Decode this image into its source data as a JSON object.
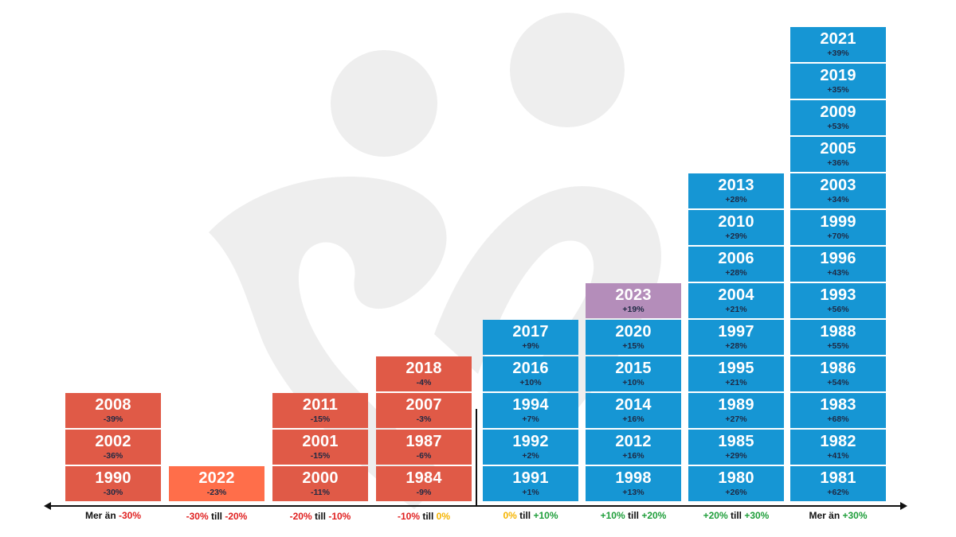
{
  "colors": {
    "negative": "#E05A47",
    "negative_light": "#FF6E4A",
    "positive": "#1696D4",
    "highlight": "#B48DBA",
    "watermark": "#EEEEEE",
    "label_red": "#E02020",
    "label_orange": "#F5B400",
    "label_green": "#1E9E3A"
  },
  "chart_data": {
    "type": "bar",
    "categories": [
      {
        "parts": [
          {
            "t": "Mer än ",
            "c": "black"
          },
          {
            "t": "-30%",
            "c": "red"
          }
        ]
      },
      {
        "parts": [
          {
            "t": "-30%",
            "c": "red"
          },
          {
            "t": " till ",
            "c": "black"
          },
          {
            "t": "-20%",
            "c": "red"
          }
        ]
      },
      {
        "parts": [
          {
            "t": "-20%",
            "c": "red"
          },
          {
            "t": " till ",
            "c": "black"
          },
          {
            "t": "-10%",
            "c": "red"
          }
        ]
      },
      {
        "parts": [
          {
            "t": "-10%",
            "c": "red"
          },
          {
            "t": " till ",
            "c": "black"
          },
          {
            "t": "0%",
            "c": "orange"
          }
        ]
      },
      {
        "parts": [
          {
            "t": "0%",
            "c": "orange"
          },
          {
            "t": " till ",
            "c": "black"
          },
          {
            "t": "+10%",
            "c": "green"
          }
        ]
      },
      {
        "parts": [
          {
            "t": "+10%",
            "c": "green"
          },
          {
            "t": " till ",
            "c": "black"
          },
          {
            "t": "+20%",
            "c": "green"
          }
        ]
      },
      {
        "parts": [
          {
            "t": "+20%",
            "c": "green"
          },
          {
            "t": " till ",
            "c": "black"
          },
          {
            "t": "+30%",
            "c": "green"
          }
        ]
      },
      {
        "parts": [
          {
            "t": "Mer än ",
            "c": "black"
          },
          {
            "t": "+30%",
            "c": "green"
          }
        ]
      }
    ],
    "columns": [
      {
        "color": "negative",
        "items": [
          {
            "year": "1990",
            "change": "-30%"
          },
          {
            "year": "2002",
            "change": "-36%"
          },
          {
            "year": "2008",
            "change": "-39%"
          }
        ]
      },
      {
        "color": "negative_light",
        "items": [
          {
            "year": "2022",
            "change": "-23%"
          }
        ]
      },
      {
        "color": "negative",
        "items": [
          {
            "year": "2000",
            "change": "-11%"
          },
          {
            "year": "2001",
            "change": "-15%"
          },
          {
            "year": "2011",
            "change": "-15%"
          }
        ]
      },
      {
        "color": "negative",
        "items": [
          {
            "year": "1984",
            "change": "-9%"
          },
          {
            "year": "1987",
            "change": "-6%"
          },
          {
            "year": "2007",
            "change": "-3%"
          },
          {
            "year": "2018",
            "change": "-4%"
          }
        ]
      },
      {
        "color": "positive",
        "items": [
          {
            "year": "1991",
            "change": "+1%"
          },
          {
            "year": "1992",
            "change": "+2%"
          },
          {
            "year": "1994",
            "change": "+7%"
          },
          {
            "year": "2016",
            "change": "+10%"
          },
          {
            "year": "2017",
            "change": "+9%"
          }
        ]
      },
      {
        "color": "positive",
        "items": [
          {
            "year": "1998",
            "change": "+13%"
          },
          {
            "year": "2012",
            "change": "+16%"
          },
          {
            "year": "2014",
            "change": "+16%"
          },
          {
            "year": "2015",
            "change": "+10%"
          },
          {
            "year": "2020",
            "change": "+15%"
          },
          {
            "year": "2023",
            "change": "+19%",
            "highlight": true
          }
        ]
      },
      {
        "color": "positive",
        "items": [
          {
            "year": "1980",
            "change": "+26%"
          },
          {
            "year": "1985",
            "change": "+29%"
          },
          {
            "year": "1989",
            "change": "+27%"
          },
          {
            "year": "1995",
            "change": "+21%"
          },
          {
            "year": "1997",
            "change": "+28%"
          },
          {
            "year": "2004",
            "change": "+21%"
          },
          {
            "year": "2006",
            "change": "+28%"
          },
          {
            "year": "2010",
            "change": "+29%"
          },
          {
            "year": "2013",
            "change": "+28%"
          }
        ]
      },
      {
        "color": "positive",
        "items": [
          {
            "year": "1981",
            "change": "+62%"
          },
          {
            "year": "1982",
            "change": "+41%"
          },
          {
            "year": "1983",
            "change": "+68%"
          },
          {
            "year": "1986",
            "change": "+54%"
          },
          {
            "year": "1988",
            "change": "+55%"
          },
          {
            "year": "1993",
            "change": "+56%"
          },
          {
            "year": "1996",
            "change": "+43%"
          },
          {
            "year": "1999",
            "change": "+70%"
          },
          {
            "year": "2003",
            "change": "+34%"
          },
          {
            "year": "2005",
            "change": "+36%"
          },
          {
            "year": "2009",
            "change": "+53%"
          },
          {
            "year": "2019",
            "change": "+35%"
          },
          {
            "year": "2021",
            "change": "+39%"
          }
        ]
      }
    ],
    "title": "",
    "xlabel": "",
    "ylabel": ""
  }
}
